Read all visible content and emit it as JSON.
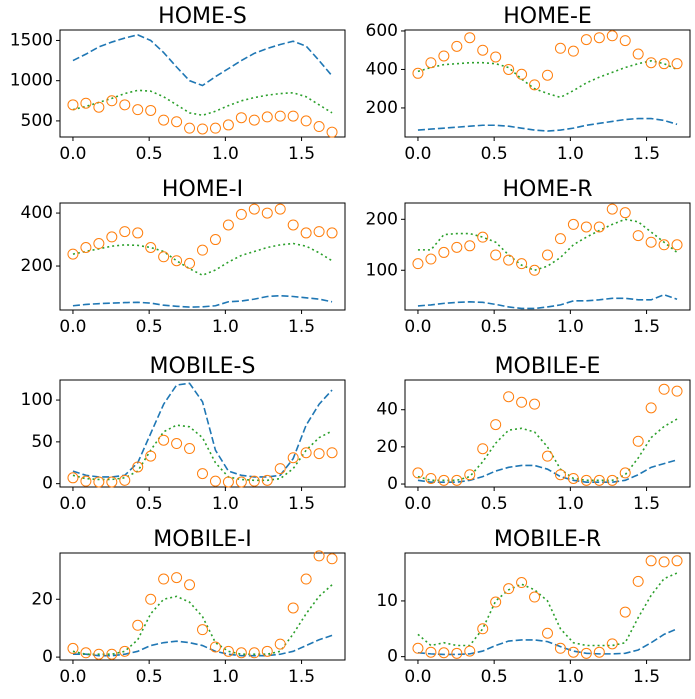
{
  "chart_data": [
    {
      "type": "line",
      "title": "HOME-S",
      "x": [
        0,
        0.085,
        0.17,
        0.255,
        0.34,
        0.425,
        0.51,
        0.595,
        0.68,
        0.765,
        0.85,
        0.935,
        1.02,
        1.105,
        1.19,
        1.275,
        1.36,
        1.445,
        1.53,
        1.615,
        1.7
      ],
      "series": [
        {
          "color": "#1f77b4",
          "style": "dashed",
          "values": [
            1250,
            1330,
            1420,
            1480,
            1530,
            1570,
            1500,
            1350,
            1170,
            1000,
            940,
            1050,
            1150,
            1250,
            1340,
            1400,
            1450,
            1490,
            1430,
            1250,
            1060
          ]
        },
        {
          "color": "#2ca02c",
          "style": "dotted",
          "values": [
            640,
            680,
            730,
            780,
            840,
            880,
            870,
            800,
            700,
            600,
            570,
            620,
            690,
            750,
            790,
            820,
            840,
            850,
            800,
            700,
            600
          ]
        },
        {
          "color": "#ff7f0e",
          "style": "markers",
          "values": [
            700,
            720,
            670,
            750,
            700,
            640,
            630,
            510,
            490,
            410,
            400,
            410,
            450,
            540,
            510,
            550,
            560,
            560,
            500,
            430,
            360
          ]
        }
      ],
      "xlim": [
        -0.085,
        1.785
      ],
      "xticks": [
        {
          "value": 0,
          "label": "0.0"
        },
        {
          "value": 0.5,
          "label": "0.5"
        },
        {
          "value": 1,
          "label": "1.0"
        },
        {
          "value": 1.5,
          "label": "1.5"
        }
      ],
      "ylim": [
        300,
        1630
      ],
      "yticks": [
        500,
        1000,
        1500
      ]
    },
    {
      "type": "line",
      "title": "HOME-E",
      "x": [
        0,
        0.085,
        0.17,
        0.255,
        0.34,
        0.425,
        0.51,
        0.595,
        0.68,
        0.765,
        0.85,
        0.935,
        1.02,
        1.105,
        1.19,
        1.275,
        1.36,
        1.445,
        1.53,
        1.615,
        1.7
      ],
      "series": [
        {
          "color": "#1f77b4",
          "style": "dashed",
          "values": [
            85,
            90,
            95,
            100,
            105,
            110,
            110,
            105,
            95,
            85,
            80,
            85,
            95,
            110,
            120,
            130,
            140,
            145,
            145,
            135,
            115
          ]
        },
        {
          "color": "#2ca02c",
          "style": "dotted",
          "values": [
            390,
            410,
            425,
            430,
            435,
            435,
            430,
            410,
            350,
            300,
            275,
            255,
            290,
            330,
            360,
            385,
            410,
            430,
            445,
            430,
            400
          ]
        },
        {
          "color": "#ff7f0e",
          "style": "markers",
          "values": [
            380,
            435,
            470,
            520,
            565,
            500,
            465,
            400,
            375,
            320,
            370,
            510,
            495,
            555,
            565,
            575,
            550,
            480,
            435,
            430,
            430
          ]
        }
      ],
      "xlim": [
        -0.085,
        1.785
      ],
      "xticks": [
        {
          "value": 0,
          "label": "0.0"
        },
        {
          "value": 0.5,
          "label": "0.5"
        },
        {
          "value": 1,
          "label": "1.0"
        },
        {
          "value": 1.5,
          "label": "1.5"
        }
      ],
      "ylim": [
        49,
        605
      ],
      "yticks": [
        200,
        400,
        600
      ]
    },
    {
      "type": "line",
      "title": "HOME-I",
      "x": [
        0,
        0.085,
        0.17,
        0.255,
        0.34,
        0.425,
        0.51,
        0.595,
        0.68,
        0.765,
        0.85,
        0.935,
        1.02,
        1.105,
        1.19,
        1.275,
        1.36,
        1.445,
        1.53,
        1.615,
        1.7
      ],
      "series": [
        {
          "color": "#1f77b4",
          "style": "dashed",
          "values": [
            50,
            55,
            58,
            60,
            62,
            63,
            60,
            52,
            48,
            45,
            46,
            50,
            65,
            68,
            75,
            85,
            88,
            85,
            80,
            75,
            65
          ]
        },
        {
          "color": "#2ca02c",
          "style": "dotted",
          "values": [
            245,
            255,
            265,
            275,
            280,
            278,
            270,
            255,
            220,
            190,
            165,
            185,
            215,
            240,
            255,
            270,
            280,
            285,
            275,
            250,
            220
          ]
        },
        {
          "color": "#ff7f0e",
          "style": "markers",
          "values": [
            245,
            270,
            285,
            310,
            330,
            325,
            270,
            235,
            220,
            210,
            260,
            300,
            355,
            395,
            415,
            400,
            415,
            355,
            325,
            330,
            325
          ]
        }
      ],
      "xlim": [
        -0.085,
        1.785
      ],
      "xticks": [
        {
          "value": 0,
          "label": "0.0"
        },
        {
          "value": 0.5,
          "label": "0.5"
        },
        {
          "value": 1,
          "label": "1.0"
        },
        {
          "value": 1.5,
          "label": "1.5"
        }
      ],
      "ylim": [
        34,
        438
      ],
      "yticks": [
        200,
        400
      ]
    },
    {
      "type": "line",
      "title": "HOME-R",
      "x": [
        0,
        0.085,
        0.17,
        0.255,
        0.34,
        0.425,
        0.51,
        0.595,
        0.68,
        0.765,
        0.85,
        0.935,
        1.02,
        1.105,
        1.19,
        1.275,
        1.36,
        1.445,
        1.53,
        1.615,
        1.7
      ],
      "series": [
        {
          "color": "#1f77b4",
          "style": "dashed",
          "values": [
            30,
            32,
            35,
            37,
            38,
            37,
            33,
            28,
            25,
            25,
            28,
            32,
            40,
            40,
            42,
            45,
            45,
            42,
            42,
            52,
            43
          ]
        },
        {
          "color": "#2ca02c",
          "style": "dotted",
          "values": [
            140,
            140,
            170,
            172,
            172,
            165,
            155,
            130,
            110,
            100,
            108,
            125,
            150,
            165,
            178,
            190,
            200,
            195,
            175,
            155,
            135
          ]
        },
        {
          "color": "#ff7f0e",
          "style": "markers",
          "values": [
            113,
            122,
            135,
            145,
            148,
            165,
            130,
            120,
            113,
            100,
            130,
            162,
            190,
            185,
            185,
            220,
            213,
            168,
            155,
            150,
            150
          ]
        }
      ],
      "xlim": [
        -0.085,
        1.785
      ],
      "xticks": [
        {
          "value": 0,
          "label": "0.0"
        },
        {
          "value": 0.5,
          "label": "0.5"
        },
        {
          "value": 1,
          "label": "1.0"
        },
        {
          "value": 1.5,
          "label": "1.5"
        }
      ],
      "ylim": [
        22,
        232
      ],
      "yticks": [
        100,
        200
      ]
    },
    {
      "type": "line",
      "title": "MOBILE-S",
      "x": [
        0,
        0.085,
        0.17,
        0.255,
        0.34,
        0.425,
        0.51,
        0.595,
        0.68,
        0.765,
        0.85,
        0.935,
        1.02,
        1.105,
        1.19,
        1.275,
        1.36,
        1.445,
        1.53,
        1.615,
        1.7
      ],
      "series": [
        {
          "color": "#1f77b4",
          "style": "dashed",
          "values": [
            15,
            10,
            8,
            8,
            10,
            25,
            60,
            95,
            118,
            120,
            98,
            40,
            15,
            10,
            8,
            8,
            10,
            30,
            70,
            95,
            112
          ]
        },
        {
          "color": "#2ca02c",
          "style": "dotted",
          "values": [
            10,
            6,
            5,
            5,
            7,
            15,
            40,
            62,
            70,
            68,
            55,
            25,
            8,
            5,
            4,
            4,
            6,
            18,
            40,
            55,
            63
          ]
        },
        {
          "color": "#ff7f0e",
          "style": "markers",
          "values": [
            7,
            3,
            2,
            2,
            4,
            20,
            33,
            52,
            48,
            42,
            12,
            3,
            2,
            2,
            3,
            4,
            18,
            31,
            37,
            36,
            37
          ]
        }
      ],
      "xlim": [
        -0.085,
        1.785
      ],
      "xticks": [
        {
          "value": 0,
          "label": "0.0"
        },
        {
          "value": 0.5,
          "label": "0.5"
        },
        {
          "value": 1,
          "label": "1.0"
        },
        {
          "value": 1.5,
          "label": "1.5"
        }
      ],
      "ylim": [
        -4,
        124
      ],
      "yticks": [
        0,
        50,
        100
      ]
    },
    {
      "type": "line",
      "title": "MOBILE-E",
      "x": [
        0,
        0.085,
        0.17,
        0.255,
        0.34,
        0.425,
        0.51,
        0.595,
        0.68,
        0.765,
        0.85,
        0.935,
        1.02,
        1.105,
        1.19,
        1.275,
        1.36,
        1.445,
        1.53,
        1.615,
        1.7
      ],
      "series": [
        {
          "color": "#1f77b4",
          "style": "dashed",
          "values": [
            2,
            1,
            1,
            1,
            2,
            4,
            7,
            9,
            10,
            10,
            8,
            4,
            2,
            1,
            1,
            1,
            2,
            5,
            9,
            11,
            13
          ]
        },
        {
          "color": "#2ca02c",
          "style": "dotted",
          "values": [
            4,
            2,
            2,
            2,
            4,
            12,
            22,
            29,
            30,
            28,
            20,
            8,
            3,
            2,
            2,
            2,
            5,
            14,
            25,
            31,
            35
          ]
        },
        {
          "color": "#ff7f0e",
          "style": "markers",
          "values": [
            6,
            3,
            2,
            2,
            5,
            19,
            32,
            47,
            44,
            43,
            15,
            5,
            3,
            2,
            2,
            2,
            6,
            23,
            41,
            51,
            50
          ]
        }
      ],
      "xlim": [
        -0.085,
        1.785
      ],
      "xticks": [
        {
          "value": 0,
          "label": "0.0"
        },
        {
          "value": 0.5,
          "label": "0.5"
        },
        {
          "value": 1,
          "label": "1.0"
        },
        {
          "value": 1.5,
          "label": "1.5"
        }
      ],
      "ylim": [
        -1.6,
        56
      ],
      "yticks": [
        0,
        20,
        40
      ]
    },
    {
      "type": "line",
      "title": "MOBILE-I",
      "x": [
        0,
        0.085,
        0.17,
        0.255,
        0.34,
        0.425,
        0.51,
        0.595,
        0.68,
        0.765,
        0.85,
        0.935,
        1.02,
        1.105,
        1.19,
        1.275,
        1.36,
        1.445,
        1.53,
        1.615,
        1.7
      ],
      "series": [
        {
          "color": "#1f77b4",
          "style": "dashed",
          "values": [
            1,
            1,
            0.5,
            0.5,
            1,
            2,
            4,
            5,
            5.5,
            5,
            4,
            2,
            1,
            0.5,
            0.5,
            0.5,
            1,
            2,
            4,
            6,
            7.5
          ]
        },
        {
          "color": "#2ca02c",
          "style": "dotted",
          "values": [
            2,
            1,
            1,
            1,
            2,
            6,
            15,
            20,
            21,
            19,
            14,
            5,
            2,
            1,
            1,
            1,
            2,
            8,
            15,
            21,
            25
          ]
        },
        {
          "color": "#ff7f0e",
          "style": "markers",
          "values": [
            3,
            1.5,
            1,
            1,
            2,
            11,
            20,
            27,
            27.5,
            25,
            9.5,
            3.5,
            2,
            1.5,
            1.5,
            2,
            4.5,
            17,
            27,
            35,
            34
          ]
        }
      ],
      "xlim": [
        -0.085,
        1.785
      ],
      "xticks": [
        {
          "value": 0,
          "label": "0.0"
        },
        {
          "value": 0.5,
          "label": "0.5"
        },
        {
          "value": 1,
          "label": "1.0"
        },
        {
          "value": 1.5,
          "label": "1.5"
        }
      ],
      "ylim": [
        -1,
        36
      ],
      "yticks": [
        0,
        20
      ]
    },
    {
      "type": "line",
      "title": "MOBILE-R",
      "x": [
        0,
        0.085,
        0.17,
        0.255,
        0.34,
        0.425,
        0.51,
        0.595,
        0.68,
        0.765,
        0.85,
        0.935,
        1.02,
        1.105,
        1.19,
        1.275,
        1.36,
        1.445,
        1.53,
        1.615,
        1.7
      ],
      "series": [
        {
          "color": "#1f77b4",
          "style": "dashed",
          "values": [
            0.7,
            0.5,
            0.4,
            0.4,
            0.5,
            1,
            2,
            2.8,
            3,
            3,
            2.7,
            1.8,
            1,
            0.6,
            0.5,
            0.5,
            0.6,
            1.2,
            2.5,
            4,
            5
          ]
        },
        {
          "color": "#2ca02c",
          "style": "dotted",
          "values": [
            4,
            2,
            2.5,
            2,
            2,
            5,
            10,
            12,
            13,
            12,
            10,
            5,
            2.5,
            2,
            2,
            2,
            2.5,
            7,
            11,
            14,
            15
          ]
        },
        {
          "color": "#ff7f0e",
          "style": "markers",
          "values": [
            1.5,
            0.8,
            0.7,
            0.6,
            1,
            5,
            9.8,
            12.2,
            13.3,
            10.7,
            4.2,
            1.5,
            0.8,
            0.6,
            0.8,
            2.3,
            8,
            13.5,
            17.2,
            17,
            17.2
          ]
        }
      ],
      "xlim": [
        -0.085,
        1.785
      ],
      "xticks": [
        {
          "value": 0,
          "label": "0.0"
        },
        {
          "value": 0.5,
          "label": "0.5"
        },
        {
          "value": 1,
          "label": "1.0"
        },
        {
          "value": 1.5,
          "label": "1.5"
        }
      ],
      "ylim": [
        -0.6,
        18.6
      ],
      "yticks": [
        0,
        10
      ]
    }
  ]
}
